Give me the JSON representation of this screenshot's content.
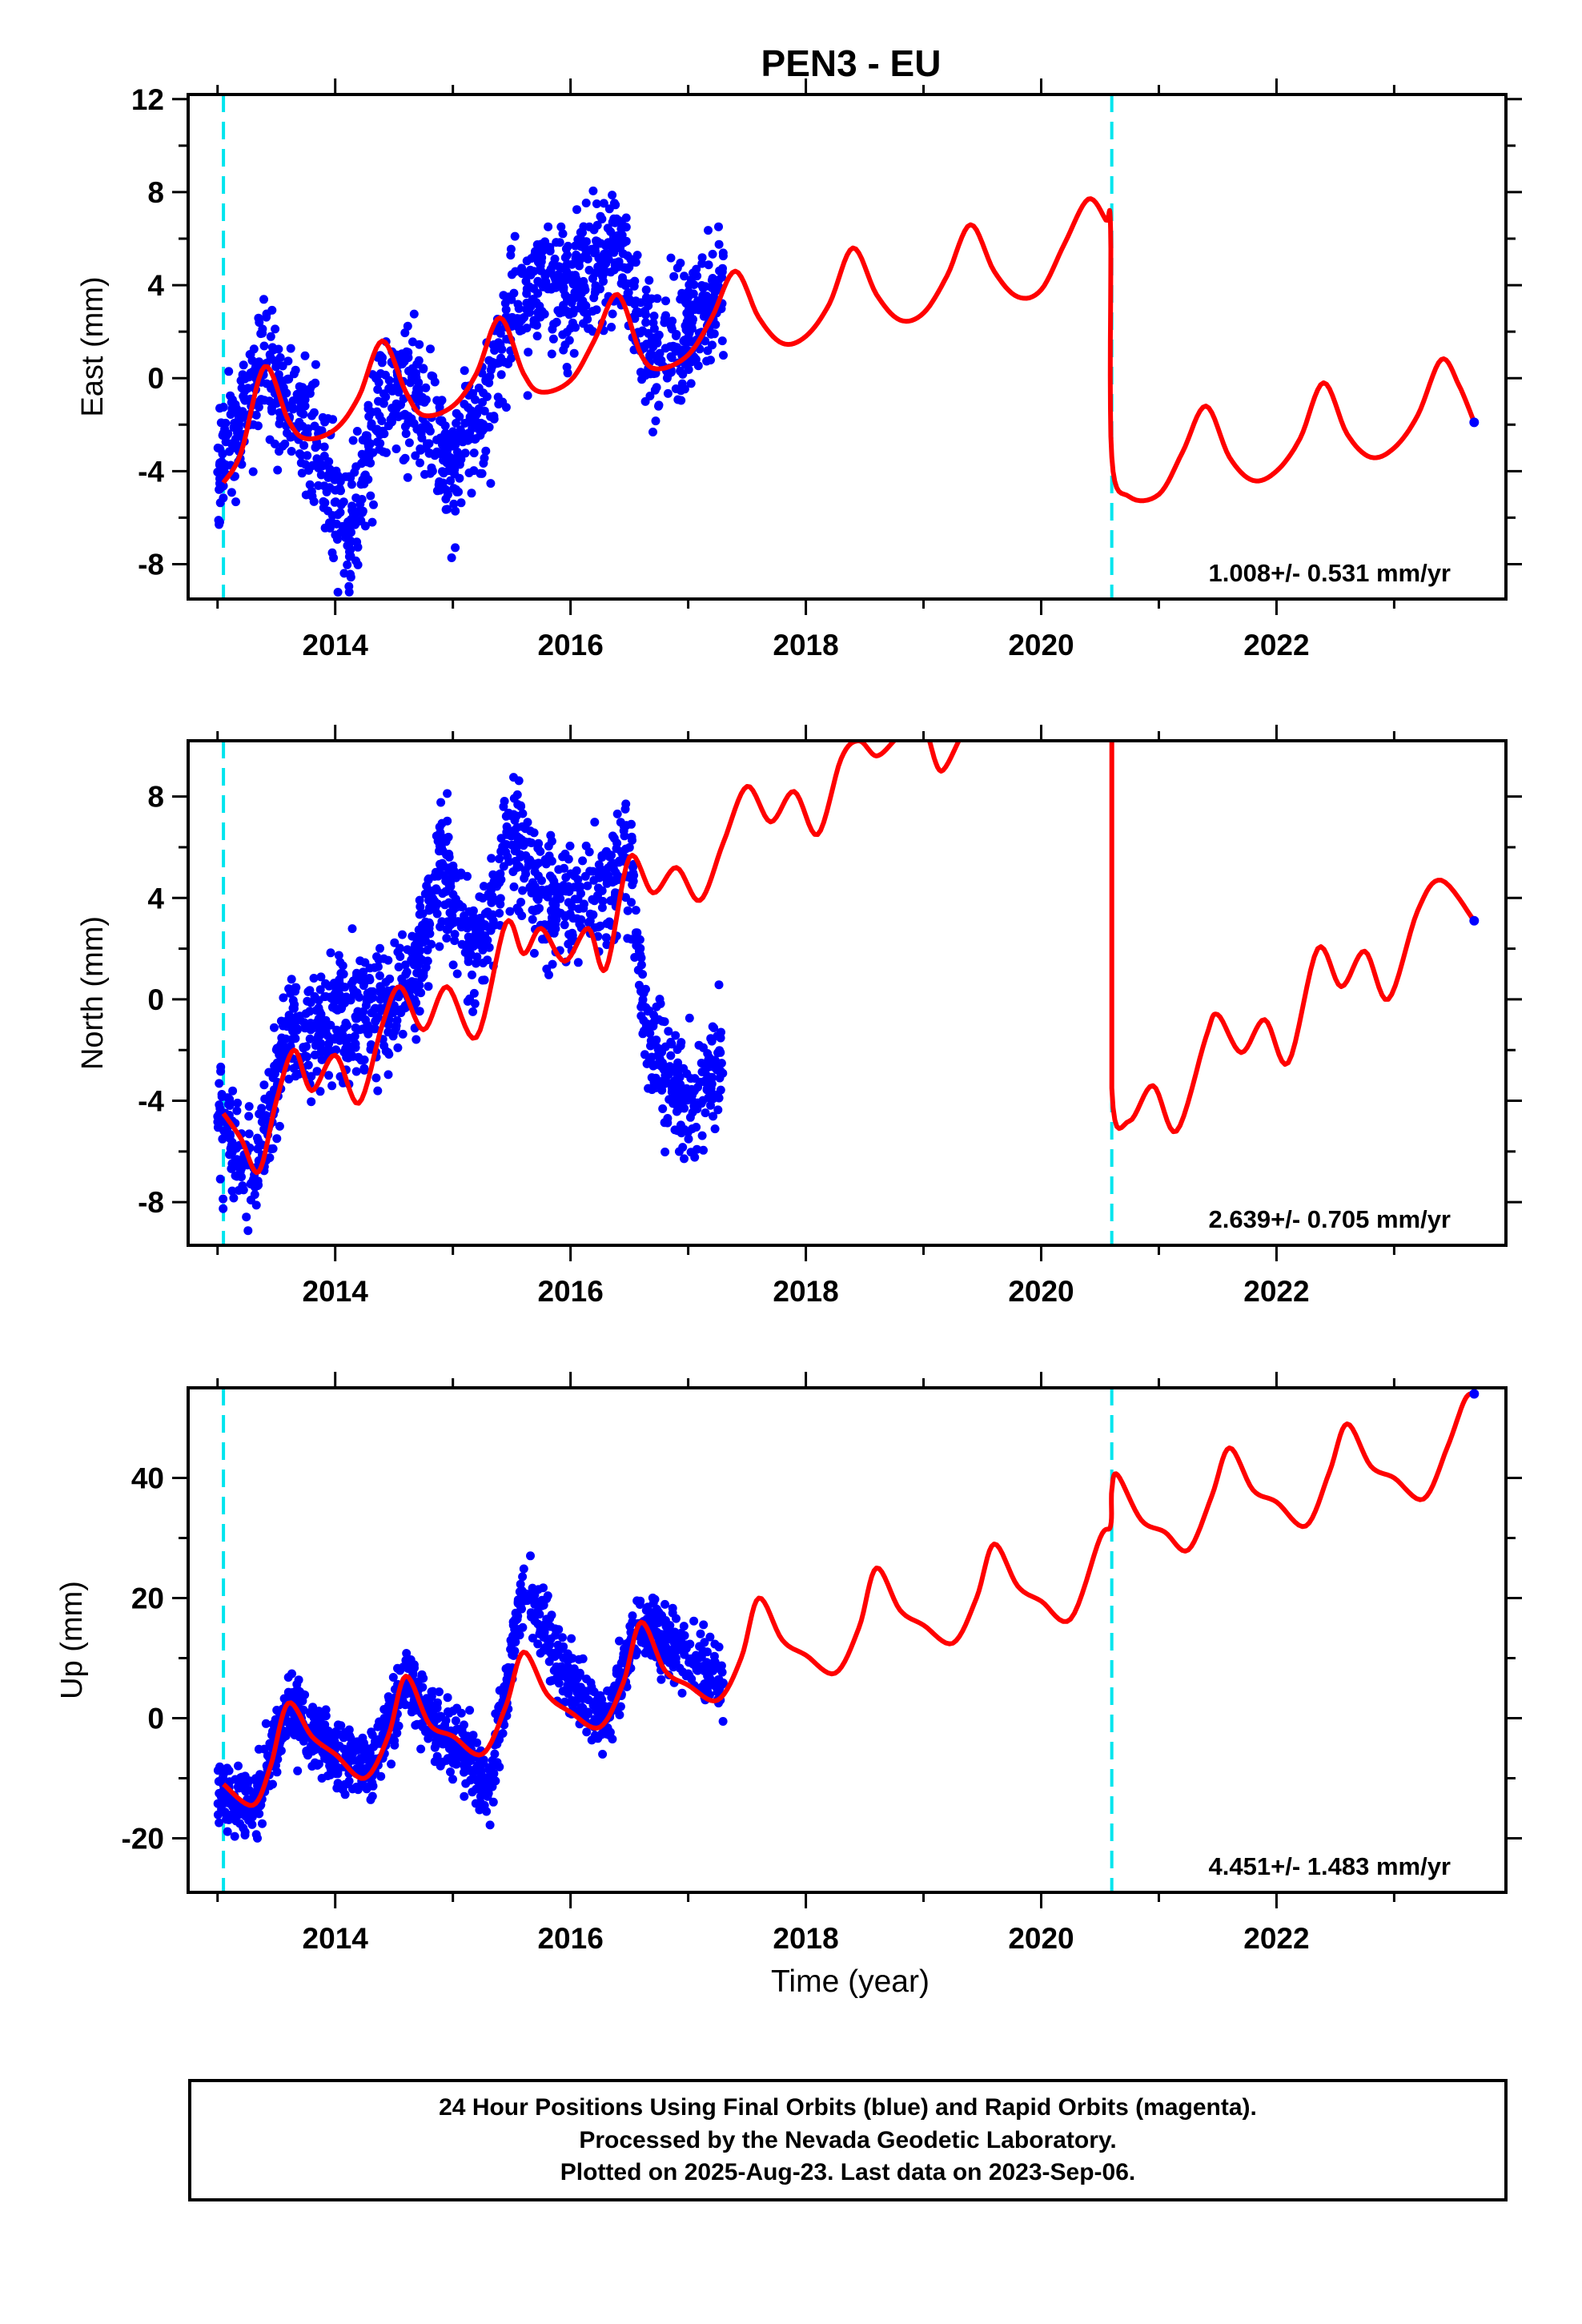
{
  "figure_title": "PEN3 - EU",
  "footer_lines": [
    "24 Hour Positions Using Final Orbits (blue) and Rapid Orbits (magenta).",
    "Processed by the Nevada Geodetic Laboratory.",
    "Plotted on 2025-Aug-23. Last data on 2023-Sep-06."
  ],
  "colors": {
    "data_points": "#0000ff",
    "model_fit": "#ff0000",
    "breaks": "#00e5ee",
    "axes": "#000000"
  },
  "chart_data": [
    {
      "type": "scatter",
      "title": "PEN3 - EU",
      "xlabel": "",
      "ylabel": "East (mm)",
      "xlim": [
        2012.75,
        2023.95
      ],
      "ylim": [
        -9.5,
        12.2
      ],
      "x_ticks": [
        2014,
        2016,
        2018,
        2020,
        2022
      ],
      "y_ticks": [
        -8,
        -4,
        0,
        4,
        8,
        12
      ],
      "rate_label": "1.008+/- 0.531 mm/yr",
      "break_epochs": [
        2013.05,
        2020.6
      ],
      "model_fit_points": [
        [
          2013.05,
          -4.5
        ],
        [
          2013.2,
          -3.2
        ],
        [
          2013.4,
          0.5
        ],
        [
          2013.6,
          -1.8
        ],
        [
          2013.75,
          -2.6
        ],
        [
          2014.0,
          -2.2
        ],
        [
          2014.2,
          -0.8
        ],
        [
          2014.4,
          1.6
        ],
        [
          2014.6,
          -0.6
        ],
        [
          2014.75,
          -1.6
        ],
        [
          2015.0,
          -1.2
        ],
        [
          2015.2,
          0.2
        ],
        [
          2015.4,
          2.6
        ],
        [
          2015.6,
          0.2
        ],
        [
          2015.75,
          -0.6
        ],
        [
          2016.0,
          -0.1
        ],
        [
          2016.2,
          1.6
        ],
        [
          2016.4,
          3.6
        ],
        [
          2016.6,
          1.0
        ],
        [
          2016.75,
          0.4
        ],
        [
          2017.0,
          1.0
        ],
        [
          2017.2,
          2.6
        ],
        [
          2017.4,
          4.6
        ],
        [
          2017.6,
          2.6
        ],
        [
          2017.8,
          1.5
        ],
        [
          2018.0,
          1.8
        ],
        [
          2018.2,
          3.2
        ],
        [
          2018.4,
          5.6
        ],
        [
          2018.6,
          3.6
        ],
        [
          2018.8,
          2.5
        ],
        [
          2019.0,
          2.8
        ],
        [
          2019.2,
          4.4
        ],
        [
          2019.4,
          6.6
        ],
        [
          2019.6,
          4.6
        ],
        [
          2019.8,
          3.5
        ],
        [
          2020.0,
          3.8
        ],
        [
          2020.2,
          5.8
        ],
        [
          2020.4,
          7.7
        ],
        [
          2020.55,
          6.8
        ],
        [
          2020.59,
          6.4
        ],
        [
          2020.6,
          -3.4
        ],
        [
          2020.75,
          -5.1
        ],
        [
          2021.0,
          -5.0
        ],
        [
          2021.2,
          -3.2
        ],
        [
          2021.4,
          -1.2
        ],
        [
          2021.6,
          -3.4
        ],
        [
          2021.8,
          -4.4
        ],
        [
          2022.0,
          -4.0
        ],
        [
          2022.2,
          -2.6
        ],
        [
          2022.4,
          -0.2
        ],
        [
          2022.6,
          -2.4
        ],
        [
          2022.8,
          -3.4
        ],
        [
          2023.0,
          -3.0
        ],
        [
          2023.2,
          -1.6
        ],
        [
          2023.4,
          0.8
        ],
        [
          2023.55,
          -0.3
        ],
        [
          2023.68,
          -1.9
        ]
      ],
      "data_trend": [
        [
          2013.0,
          -4.0
        ],
        [
          2013.4,
          0.8
        ],
        [
          2013.8,
          -2.5
        ],
        [
          2014.1,
          -6.5
        ],
        [
          2014.4,
          -1.0
        ],
        [
          2014.7,
          -0.5
        ],
        [
          2015.0,
          -4.2
        ],
        [
          2015.3,
          -0.5
        ],
        [
          2015.6,
          3.8
        ],
        [
          2016.0,
          3.5
        ],
        [
          2016.4,
          6.0
        ],
        [
          2016.7,
          0.8
        ],
        [
          2017.0,
          2.0
        ],
        [
          2017.3,
          4.2
        ]
      ],
      "data_scatter_mm": 2.2,
      "data_range": [
        2013.0,
        2017.3
      ],
      "last_point": [
        2023.68,
        -1.9
      ]
    },
    {
      "type": "scatter",
      "xlabel": "",
      "ylabel": "North (mm)",
      "xlim": [
        2012.75,
        2023.95
      ],
      "ylim": [
        -9.7,
        10.2
      ],
      "x_ticks": [
        2014,
        2016,
        2018,
        2020,
        2022
      ],
      "y_ticks": [
        -8,
        -4,
        0,
        4,
        8
      ],
      "rate_label": "2.639+/- 0.705 mm/yr",
      "break_epochs": [
        2013.05,
        2020.6
      ],
      "model_fit_points": [
        [
          2013.05,
          -4.5
        ],
        [
          2013.2,
          -5.5
        ],
        [
          2013.35,
          -6.8
        ],
        [
          2013.5,
          -4.0
        ],
        [
          2013.65,
          -2.0
        ],
        [
          2013.8,
          -3.6
        ],
        [
          2014.0,
          -2.2
        ],
        [
          2014.2,
          -4.1
        ],
        [
          2014.4,
          -1.0
        ],
        [
          2014.55,
          0.5
        ],
        [
          2014.75,
          -1.2
        ],
        [
          2014.95,
          0.5
        ],
        [
          2015.2,
          -1.5
        ],
        [
          2015.45,
          3.0
        ],
        [
          2015.6,
          1.8
        ],
        [
          2015.75,
          2.8
        ],
        [
          2015.95,
          1.5
        ],
        [
          2016.15,
          2.8
        ],
        [
          2016.3,
          1.2
        ],
        [
          2016.5,
          5.6
        ],
        [
          2016.7,
          4.2
        ],
        [
          2016.9,
          5.2
        ],
        [
          2017.1,
          3.9
        ],
        [
          2017.3,
          6.2
        ],
        [
          2017.5,
          8.4
        ],
        [
          2017.7,
          7.0
        ],
        [
          2017.9,
          8.2
        ],
        [
          2018.1,
          6.5
        ],
        [
          2018.3,
          9.5
        ],
        [
          2018.45,
          10.2
        ],
        [
          2018.6,
          9.6
        ],
        [
          2018.75,
          10.2
        ]
      ],
      "model_fit_points_2": [
        [
          2019.05,
          10.2
        ],
        [
          2019.15,
          9.0
        ],
        [
          2019.3,
          10.2
        ]
      ],
      "model_fit_points_3": [
        [
          2020.6,
          10.2
        ],
        [
          2020.6,
          -3.5
        ],
        [
          2020.75,
          -4.8
        ],
        [
          2020.95,
          -3.4
        ],
        [
          2021.15,
          -5.2
        ],
        [
          2021.4,
          -1.5
        ],
        [
          2021.5,
          -0.6
        ],
        [
          2021.7,
          -2.1
        ],
        [
          2021.9,
          -0.8
        ],
        [
          2022.1,
          -2.5
        ],
        [
          2022.35,
          2.0
        ],
        [
          2022.55,
          0.5
        ],
        [
          2022.75,
          1.9
        ],
        [
          2022.95,
          0.0
        ],
        [
          2023.2,
          3.5
        ],
        [
          2023.4,
          4.7
        ],
        [
          2023.68,
          3.1
        ]
      ],
      "data_trend": [
        [
          2013.0,
          -4.5
        ],
        [
          2013.3,
          -7.0
        ],
        [
          2013.6,
          -1.0
        ],
        [
          2013.8,
          -1.5
        ],
        [
          2014.0,
          -0.5
        ],
        [
          2014.4,
          -0.5
        ],
        [
          2014.7,
          1.0
        ],
        [
          2014.9,
          5.5
        ],
        [
          2015.2,
          1.5
        ],
        [
          2015.5,
          6.5
        ],
        [
          2015.8,
          3.8
        ],
        [
          2016.2,
          4.0
        ],
        [
          2016.5,
          5.5
        ],
        [
          2016.65,
          -1.2
        ],
        [
          2016.9,
          -3.5
        ],
        [
          2017.1,
          -4.0
        ],
        [
          2017.3,
          -1.8
        ]
      ],
      "data_scatter_mm": 1.8,
      "data_range": [
        2013.0,
        2017.3
      ],
      "last_point": [
        2023.68,
        3.1
      ]
    },
    {
      "type": "scatter",
      "xlabel": "Time (year)",
      "ylabel": "Up (mm)",
      "xlim": [
        2012.75,
        2023.95
      ],
      "ylim": [
        -29,
        55
      ],
      "x_ticks": [
        2014,
        2016,
        2018,
        2020,
        2022
      ],
      "y_ticks": [
        -20,
        0,
        20,
        40
      ],
      "rate_label": "4.451+/- 1.483 mm/yr",
      "break_epochs": [
        2013.05,
        2020.6
      ],
      "model_fit_points": [
        [
          2013.05,
          -11
        ],
        [
          2013.3,
          -14.5
        ],
        [
          2013.45,
          -8
        ],
        [
          2013.6,
          2.5
        ],
        [
          2013.8,
          -3
        ],
        [
          2014.0,
          -6
        ],
        [
          2014.25,
          -10
        ],
        [
          2014.45,
          -3
        ],
        [
          2014.6,
          7
        ],
        [
          2014.8,
          -1
        ],
        [
          2015.0,
          -3
        ],
        [
          2015.25,
          -6
        ],
        [
          2015.45,
          2
        ],
        [
          2015.6,
          11
        ],
        [
          2015.8,
          4
        ],
        [
          2016.0,
          1
        ],
        [
          2016.25,
          -1.5
        ],
        [
          2016.45,
          6
        ],
        [
          2016.6,
          16
        ],
        [
          2016.8,
          8
        ],
        [
          2017.0,
          5.5
        ],
        [
          2017.25,
          3
        ],
        [
          2017.45,
          10
        ],
        [
          2017.6,
          20
        ],
        [
          2017.8,
          13
        ],
        [
          2018.0,
          10.5
        ],
        [
          2018.25,
          7.5
        ],
        [
          2018.45,
          15
        ],
        [
          2018.6,
          25
        ],
        [
          2018.8,
          18
        ],
        [
          2019.0,
          15.5
        ],
        [
          2019.25,
          12.5
        ],
        [
          2019.45,
          20
        ],
        [
          2019.6,
          29
        ],
        [
          2019.8,
          22
        ],
        [
          2020.0,
          19.5
        ],
        [
          2020.25,
          16.5
        ],
        [
          2020.5,
          30
        ],
        [
          2020.59,
          32
        ],
        [
          2020.6,
          38
        ],
        [
          2020.65,
          40.5
        ],
        [
          2020.85,
          33
        ],
        [
          2021.05,
          31
        ],
        [
          2021.25,
          28
        ],
        [
          2021.45,
          37
        ],
        [
          2021.6,
          45
        ],
        [
          2021.8,
          38
        ],
        [
          2022.0,
          36
        ],
        [
          2022.25,
          32
        ],
        [
          2022.45,
          41
        ],
        [
          2022.6,
          49
        ],
        [
          2022.8,
          42
        ],
        [
          2023.0,
          40
        ],
        [
          2023.25,
          36.5
        ],
        [
          2023.45,
          45
        ],
        [
          2023.6,
          53
        ],
        [
          2023.68,
          54
        ]
      ],
      "data_trend": [
        [
          2013.0,
          -11
        ],
        [
          2013.3,
          -16
        ],
        [
          2013.6,
          2
        ],
        [
          2014.0,
          -6
        ],
        [
          2014.3,
          -8
        ],
        [
          2014.6,
          6
        ],
        [
          2015.0,
          -4
        ],
        [
          2015.3,
          -12
        ],
        [
          2015.6,
          22
        ],
        [
          2016.0,
          6
        ],
        [
          2016.3,
          0
        ],
        [
          2016.6,
          16
        ],
        [
          2017.0,
          10
        ],
        [
          2017.3,
          6
        ]
      ],
      "data_scatter_mm": 4.5,
      "data_range": [
        2013.0,
        2017.3
      ],
      "last_point": [
        2023.68,
        54
      ]
    }
  ]
}
